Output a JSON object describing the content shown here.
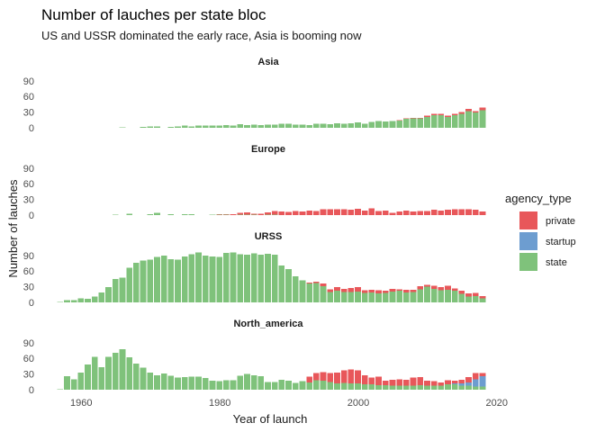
{
  "chart_data": {
    "type": "bar",
    "title": "Number of lauches per state bloc",
    "subtitle": "US and USSR dominated the early race, Asia is booming now",
    "xlabel": "Year of launch",
    "ylabel": "Number of lauches",
    "xlim": [
      1955,
      2019
    ],
    "x_ticks": [
      "1960",
      "1980",
      "2000",
      "2020"
    ],
    "ylim": [
      0,
      100
    ],
    "y_ticks": [
      "0",
      "30",
      "60",
      "90"
    ],
    "stacked": true,
    "legend": {
      "title": "agency_type",
      "position": "right",
      "items": [
        {
          "name": "private",
          "color": "#e8575a"
        },
        {
          "name": "startup",
          "color": "#6d9dd0"
        },
        {
          "name": "state",
          "color": "#7fc27b"
        }
      ]
    },
    "panels": [
      {
        "name": "Asia",
        "years": [
          1966,
          1969,
          1970,
          1971,
          1973,
          1974,
          1975,
          1976,
          1977,
          1978,
          1979,
          1980,
          1981,
          1982,
          1983,
          1984,
          1985,
          1986,
          1987,
          1988,
          1989,
          1990,
          1991,
          1992,
          1993,
          1994,
          1995,
          1996,
          1997,
          1998,
          1999,
          2000,
          2001,
          2002,
          2003,
          2004,
          2005,
          2006,
          2007,
          2008,
          2009,
          2010,
          2011,
          2012,
          2013,
          2014,
          2015,
          2016,
          2017,
          2018
        ],
        "state": [
          1,
          2,
          3,
          3,
          2,
          3,
          4,
          3,
          4,
          4,
          4,
          4,
          5,
          4,
          7,
          5,
          6,
          5,
          6,
          6,
          8,
          8,
          6,
          6,
          5,
          8,
          8,
          7,
          9,
          8,
          9,
          10,
          8,
          11,
          13,
          12,
          13,
          14,
          17,
          18,
          18,
          21,
          24,
          24,
          21,
          24,
          27,
          32,
          29,
          34
        ],
        "private": [
          0,
          0,
          0,
          0,
          0,
          0,
          0,
          0,
          0,
          0,
          0,
          0,
          0,
          0,
          0,
          0,
          0,
          0,
          0,
          0,
          0,
          0,
          0,
          0,
          0,
          0,
          0,
          0,
          0,
          0,
          0,
          0,
          0,
          0,
          0,
          0,
          0,
          1,
          1,
          1,
          1,
          2,
          3,
          3,
          2,
          3,
          3,
          4,
          3,
          5
        ],
        "startup": [
          0,
          0,
          0,
          0,
          0,
          0,
          0,
          0,
          0,
          0,
          0,
          0,
          0,
          0,
          0,
          0,
          0,
          0,
          0,
          0,
          0,
          0,
          0,
          0,
          0,
          0,
          0,
          0,
          0,
          0,
          0,
          0,
          0,
          0,
          0,
          0,
          0,
          0,
          0,
          0,
          0,
          0,
          0,
          0,
          0,
          0,
          0,
          0,
          0,
          0
        ]
      },
      {
        "name": "Europe",
        "years": [
          1965,
          1967,
          1970,
          1971,
          1973,
          1975,
          1976,
          1979,
          1980,
          1981,
          1982,
          1983,
          1984,
          1985,
          1986,
          1987,
          1988,
          1989,
          1990,
          1991,
          1992,
          1993,
          1994,
          1995,
          1996,
          1997,
          1998,
          1999,
          2000,
          2001,
          2002,
          2003,
          2004,
          2005,
          2006,
          2007,
          2008,
          2009,
          2010,
          2011,
          2012,
          2013,
          2014,
          2015,
          2016,
          2017,
          2018
        ],
        "state": [
          1,
          3,
          2,
          4,
          2,
          2,
          2,
          1,
          1,
          1,
          0,
          1,
          1,
          1,
          0,
          1,
          1,
          0,
          0,
          0,
          0,
          0,
          0,
          0,
          0,
          0,
          0,
          0,
          0,
          0,
          0,
          0,
          0,
          0,
          0,
          0,
          0,
          0,
          0,
          0,
          0,
          0,
          0,
          0,
          0,
          0,
          0
        ],
        "private": [
          0,
          0,
          0,
          0,
          0,
          0,
          0,
          0,
          1,
          1,
          2,
          3,
          4,
          2,
          3,
          4,
          7,
          7,
          6,
          8,
          7,
          9,
          8,
          11,
          11,
          11,
          11,
          10,
          12,
          9,
          13,
          8,
          9,
          4,
          7,
          9,
          7,
          8,
          8,
          10,
          9,
          10,
          11,
          11,
          11,
          10,
          7
        ],
        "startup": [
          0,
          0,
          0,
          0,
          0,
          0,
          0,
          0,
          0,
          0,
          0,
          0,
          0,
          0,
          0,
          0,
          0,
          0,
          0,
          0,
          0,
          0,
          0,
          0,
          0,
          0,
          0,
          0,
          0,
          0,
          0,
          0,
          0,
          0,
          0,
          0,
          0,
          0,
          0,
          0,
          0,
          0,
          0,
          0,
          0,
          0,
          0
        ]
      },
      {
        "name": "URSS",
        "years": [
          1957,
          1958,
          1959,
          1960,
          1961,
          1962,
          1963,
          1964,
          1965,
          1966,
          1967,
          1968,
          1969,
          1970,
          1971,
          1972,
          1973,
          1974,
          1975,
          1976,
          1977,
          1978,
          1979,
          1980,
          1981,
          1982,
          1983,
          1984,
          1985,
          1986,
          1987,
          1988,
          1989,
          1990,
          1991,
          1992,
          1993,
          1994,
          1995,
          1996,
          1997,
          1998,
          1999,
          2000,
          2001,
          2002,
          2003,
          2004,
          2005,
          2006,
          2007,
          2008,
          2009,
          2010,
          2011,
          2012,
          2013,
          2014,
          2015,
          2016,
          2017,
          2018
        ],
        "state": [
          1,
          4,
          4,
          8,
          7,
          11,
          19,
          29,
          45,
          47,
          66,
          76,
          80,
          82,
          87,
          90,
          83,
          82,
          88,
          92,
          96,
          90,
          88,
          87,
          95,
          96,
          92,
          91,
          94,
          91,
          93,
          91,
          71,
          64,
          50,
          42,
          36,
          37,
          31,
          20,
          22,
          20,
          20,
          21,
          18,
          19,
          17,
          18,
          21,
          22,
          19,
          20,
          25,
          30,
          26,
          23,
          24,
          22,
          16,
          11,
          12,
          8
        ],
        "private": [
          0,
          0,
          0,
          0,
          0,
          0,
          0,
          0,
          0,
          0,
          0,
          0,
          0,
          0,
          0,
          0,
          0,
          0,
          0,
          0,
          0,
          0,
          0,
          0,
          0,
          0,
          0,
          0,
          0,
          0,
          0,
          0,
          0,
          0,
          0,
          0,
          2,
          3,
          5,
          5,
          7,
          6,
          8,
          8,
          5,
          5,
          6,
          4,
          5,
          3,
          5,
          4,
          6,
          4,
          6,
          6,
          8,
          5,
          6,
          6,
          6,
          4
        ],
        "startup": [
          0,
          0,
          0,
          0,
          0,
          0,
          0,
          0,
          0,
          0,
          0,
          0,
          0,
          0,
          0,
          0,
          0,
          0,
          0,
          0,
          0,
          0,
          0,
          0,
          0,
          0,
          0,
          0,
          0,
          0,
          0,
          0,
          0,
          0,
          0,
          0,
          0,
          0,
          0,
          0,
          0,
          0,
          0,
          0,
          0,
          0,
          0,
          0,
          0,
          0,
          0,
          0,
          0,
          0,
          0,
          0,
          0,
          0,
          0,
          0,
          0,
          0
        ]
      },
      {
        "name": "North_america",
        "years": [
          1957,
          1958,
          1959,
          1960,
          1961,
          1962,
          1963,
          1964,
          1965,
          1966,
          1967,
          1968,
          1969,
          1970,
          1971,
          1972,
          1973,
          1974,
          1975,
          1976,
          1977,
          1978,
          1979,
          1980,
          1981,
          1982,
          1983,
          1984,
          1985,
          1986,
          1987,
          1988,
          1989,
          1990,
          1991,
          1992,
          1993,
          1994,
          1995,
          1996,
          1997,
          1998,
          1999,
          2000,
          2001,
          2002,
          2003,
          2004,
          2005,
          2006,
          2007,
          2008,
          2009,
          2010,
          2011,
          2012,
          2013,
          2014,
          2015,
          2016,
          2017,
          2018
        ],
        "state": [
          1,
          26,
          20,
          33,
          48,
          63,
          43,
          63,
          71,
          78,
          62,
          50,
          42,
          33,
          28,
          31,
          27,
          23,
          24,
          25,
          25,
          22,
          17,
          16,
          18,
          18,
          27,
          30,
          28,
          26,
          15,
          15,
          19,
          17,
          13,
          16,
          14,
          18,
          17,
          15,
          12,
          13,
          12,
          12,
          10,
          10,
          9,
          9,
          8,
          8,
          8,
          8,
          9,
          8,
          8,
          8,
          10,
          10,
          8,
          8,
          6,
          6
        ],
        "private": [
          0,
          0,
          0,
          0,
          0,
          0,
          0,
          0,
          0,
          0,
          0,
          0,
          0,
          0,
          0,
          0,
          0,
          0,
          0,
          0,
          0,
          0,
          0,
          0,
          0,
          0,
          0,
          0,
          0,
          0,
          0,
          0,
          0,
          0,
          0,
          0,
          11,
          14,
          17,
          17,
          21,
          24,
          27,
          25,
          18,
          13,
          16,
          8,
          11,
          12,
          11,
          15,
          15,
          9,
          8,
          6,
          8,
          5,
          7,
          10,
          12,
          6
        ],
        "startup": [
          0,
          0,
          0,
          0,
          0,
          0,
          0,
          0,
          0,
          0,
          0,
          0,
          0,
          0,
          0,
          0,
          0,
          0,
          0,
          0,
          0,
          0,
          0,
          0,
          0,
          0,
          0,
          0,
          0,
          0,
          0,
          0,
          0,
          0,
          0,
          0,
          0,
          0,
          0,
          0,
          0,
          0,
          0,
          0,
          0,
          0,
          0,
          0,
          0,
          0,
          0,
          0,
          0,
          0,
          0,
          0,
          0,
          2,
          4,
          6,
          14,
          20
        ]
      }
    ]
  }
}
